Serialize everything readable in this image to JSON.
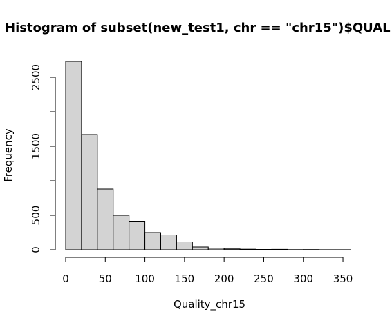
{
  "chart_data": {
    "type": "bar",
    "title": "Histogram of subset(new_test1, chr == \"chr15\")$QUAL",
    "xlabel": "Quality_chr15",
    "ylabel": "Frequency",
    "bins": [
      {
        "x0": 0,
        "x1": 20,
        "count": 2730
      },
      {
        "x0": 20,
        "x1": 40,
        "count": 1670
      },
      {
        "x0": 40,
        "x1": 60,
        "count": 880
      },
      {
        "x0": 60,
        "x1": 80,
        "count": 500
      },
      {
        "x0": 80,
        "x1": 100,
        "count": 405
      },
      {
        "x0": 100,
        "x1": 120,
        "count": 250
      },
      {
        "x0": 120,
        "x1": 140,
        "count": 215
      },
      {
        "x0": 140,
        "x1": 160,
        "count": 115
      },
      {
        "x0": 160,
        "x1": 180,
        "count": 40
      },
      {
        "x0": 180,
        "x1": 200,
        "count": 22
      },
      {
        "x0": 200,
        "x1": 220,
        "count": 12
      },
      {
        "x0": 220,
        "x1": 240,
        "count": 8
      },
      {
        "x0": 240,
        "x1": 260,
        "count": 5
      },
      {
        "x0": 260,
        "x1": 280,
        "count": 6
      },
      {
        "x0": 280,
        "x1": 300,
        "count": 2
      },
      {
        "x0": 300,
        "x1": 320,
        "count": 3
      },
      {
        "x0": 320,
        "x1": 340,
        "count": 1
      },
      {
        "x0": 340,
        "x1": 360,
        "count": 1
      }
    ],
    "xlim": [
      0,
      360
    ],
    "ylim": [
      0,
      2730
    ],
    "x_ticks": [
      0,
      50,
      100,
      150,
      200,
      250,
      300,
      350
    ],
    "y_ticks": [
      0,
      500,
      1000,
      1500,
      2000,
      2500
    ],
    "y_tick_labels": [
      "0",
      "500",
      "",
      "1500",
      "",
      "2500"
    ],
    "grid": false,
    "bar_color": "#d3d3d3"
  }
}
